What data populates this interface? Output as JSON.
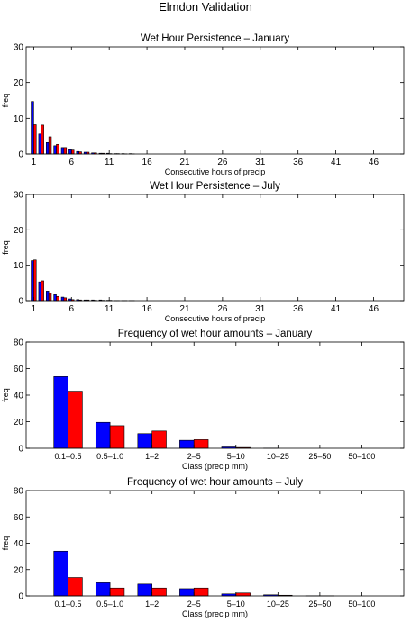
{
  "figure_title": "Elmdon Validation",
  "chart_data": [
    {
      "type": "bar",
      "title": "Wet Hour Persistence – January",
      "xlabel": "Consecutive hours of precip",
      "ylabel": "freq",
      "xlim": [
        0,
        50
      ],
      "ylim": [
        0,
        30
      ],
      "xticks": [
        1,
        6,
        11,
        16,
        21,
        26,
        31,
        36,
        41,
        46
      ],
      "yticks": [
        0,
        10,
        20,
        30
      ],
      "series_colors": [
        "#0000ff",
        "#ff0000"
      ],
      "x": [
        1,
        2,
        3,
        4,
        5,
        6,
        7,
        8,
        9,
        10,
        11,
        12,
        13,
        14
      ],
      "series": [
        {
          "values": [
            14.7,
            5.6,
            3.2,
            2.3,
            1.8,
            1.2,
            0.7,
            0.5,
            0.3,
            0.2,
            0.2,
            0.1,
            0.1,
            0.1
          ]
        },
        {
          "values": [
            8.2,
            8.1,
            4.8,
            2.7,
            1.8,
            1.1,
            0.6,
            0.5,
            0.3,
            0.2,
            0.1,
            0.1,
            0.05,
            0.05
          ]
        }
      ]
    },
    {
      "type": "bar",
      "title": "Wet Hour Persistence – July",
      "xlabel": "Consecutive hours of precip",
      "ylabel": "freq",
      "xlim": [
        0,
        50
      ],
      "ylim": [
        0,
        30
      ],
      "xticks": [
        1,
        6,
        11,
        16,
        21,
        26,
        31,
        36,
        41,
        46
      ],
      "yticks": [
        0,
        10,
        20,
        30
      ],
      "series_colors": [
        "#0000ff",
        "#ff0000"
      ],
      "x": [
        1,
        2,
        3,
        4,
        5,
        6,
        7,
        8,
        9,
        10,
        11,
        12,
        13,
        14
      ],
      "series": [
        {
          "values": [
            11.3,
            5.3,
            2.7,
            1.7,
            1.0,
            0.5,
            0.3,
            0.2,
            0.2,
            0.2,
            0.1,
            0.05,
            0.05,
            0.05
          ]
        },
        {
          "values": [
            11.5,
            5.6,
            2.2,
            1.2,
            0.8,
            0.3,
            0.2,
            0.2,
            0.1,
            0.1,
            0.1,
            0.05,
            0.05,
            0.05
          ]
        }
      ]
    },
    {
      "type": "bar",
      "title": "Frequency of wet hour amounts – January",
      "xlabel": "Class (precip mm)",
      "ylabel": "freq",
      "ylim": [
        0,
        80
      ],
      "yticks": [
        0,
        20,
        40,
        60,
        80
      ],
      "series_colors": [
        "#0000ff",
        "#ff0000"
      ],
      "categories": [
        "0.1–0.5",
        "0.5–1.0",
        "1–2",
        "2–5",
        "5–10",
        "10–25",
        "25–50",
        "50–100"
      ],
      "series": [
        {
          "values": [
            54,
            19.5,
            11,
            6,
            1,
            0.1,
            0,
            0
          ]
        },
        {
          "values": [
            43,
            17,
            13,
            6.5,
            0.6,
            0,
            0,
            0
          ]
        }
      ]
    },
    {
      "type": "bar",
      "title": "Frequency of wet hour amounts – July",
      "xlabel": "Class (precip mm)",
      "ylabel": "freq",
      "ylim": [
        0,
        80
      ],
      "yticks": [
        0,
        20,
        40,
        60,
        80
      ],
      "series_colors": [
        "#0000ff",
        "#ff0000"
      ],
      "categories": [
        "0.1–0.5",
        "0.5–1.0",
        "1–2",
        "2–5",
        "5–10",
        "10–25",
        "25–50",
        "50–100"
      ],
      "series": [
        {
          "values": [
            34,
            10,
            9,
            5.5,
            1.5,
            0.8,
            0.1,
            0
          ]
        },
        {
          "values": [
            14,
            6,
            6,
            6,
            2.2,
            0.5,
            0.1,
            0
          ]
        }
      ]
    }
  ]
}
